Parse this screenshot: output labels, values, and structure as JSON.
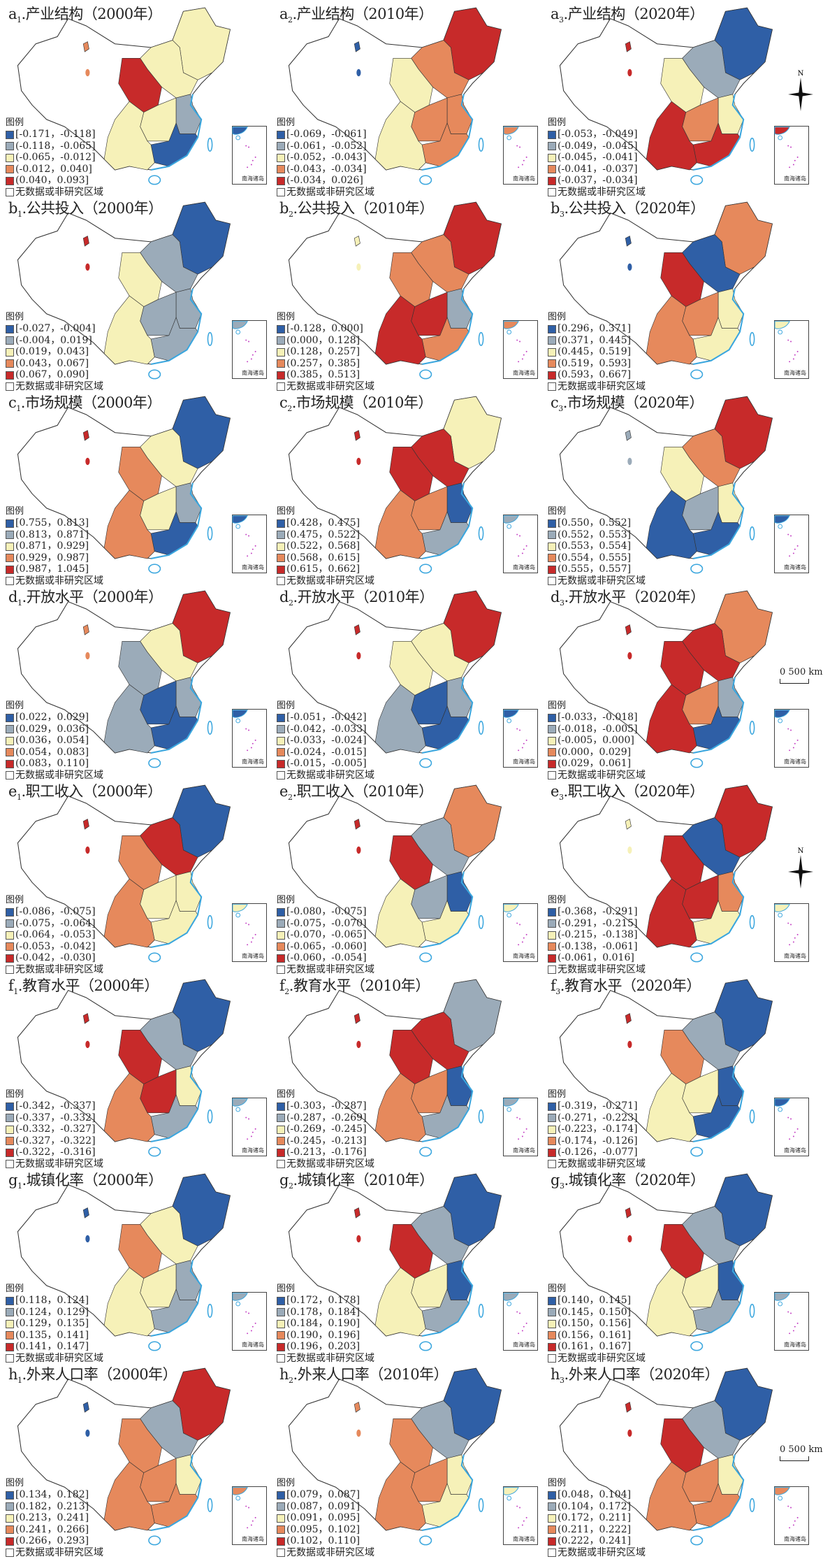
{
  "colors": [
    "#2f5fa6",
    "#9babb9",
    "#f6f1b8",
    "#e6895c",
    "#c72a2a"
  ],
  "legend_heading": "图例",
  "no_data_label": "无数据或非研究区域",
  "inset_label": "南海诸岛",
  "compass_label": "N",
  "scale_label": "0  500 km",
  "region_order": [
    "northeast",
    "north",
    "northwest",
    "central",
    "east",
    "southeast",
    "southwest",
    "xinjiang"
  ],
  "panels": [
    {
      "id": "a",
      "sub": "1",
      "name": "产业结构",
      "year": "（2000年）",
      "legend": [
        "[-0.171，-0.118]",
        "(-0.118，-0.065]",
        "(-0.065，-0.012]",
        "(-0.012，0.040]",
        "(0.040，0.093]"
      ],
      "classes": [
        2,
        2,
        4,
        2,
        1,
        0,
        2,
        3
      ]
    },
    {
      "id": "a",
      "sub": "2",
      "name": "产业结构",
      "year": "（2010年）",
      "legend": [
        "[-0.069，-0.061]",
        "(-0.061，-0.052]",
        "(-0.052，-0.043]",
        "(-0.043，-0.034]",
        "(-0.034，0.026]"
      ],
      "classes": [
        4,
        3,
        2,
        3,
        3,
        3,
        2,
        0
      ]
    },
    {
      "id": "a",
      "sub": "3",
      "name": "产业结构",
      "year": "（2020年）",
      "legend": [
        "[-0.053，-0.049]",
        "(-0.049，-0.045]",
        "(-0.045，-0.041]",
        "(-0.041，-0.037]",
        "(-0.037，-0.034]"
      ],
      "classes": [
        0,
        1,
        2,
        3,
        2,
        4,
        4,
        4
      ],
      "compass": true
    },
    {
      "id": "b",
      "sub": "1",
      "name": "公共投入",
      "year": "（2000年）",
      "legend": [
        "[-0.027，-0.004]",
        "(-0.004，0.019]",
        "(0.019，0.043]",
        "(0.043，0.067]",
        "(0.067，0.090]"
      ],
      "classes": [
        0,
        1,
        2,
        1,
        1,
        1,
        2,
        4
      ]
    },
    {
      "id": "b",
      "sub": "2",
      "name": "公共投入",
      "year": "（2010年）",
      "legend": [
        "[-0.128，0.000]",
        "(0.000，0.128]",
        "(0.128，0.257]",
        "(0.257，0.385]",
        "(0.385，0.513]"
      ],
      "classes": [
        4,
        3,
        3,
        4,
        1,
        3,
        4,
        2
      ]
    },
    {
      "id": "b",
      "sub": "3",
      "name": "公共投入",
      "year": "（2020年）",
      "legend": [
        "[0.296，0.371]",
        "(0.371，0.445]",
        "(0.445，0.519]",
        "(0.519，0.593]",
        "(0.593，0.667]"
      ],
      "classes": [
        3,
        0,
        4,
        3,
        2,
        2,
        3,
        0
      ]
    },
    {
      "id": "c",
      "sub": "1",
      "name": "市场规模",
      "year": "（2000年）",
      "legend": [
        "[0.755，0.813]",
        "(0.813，0.871]",
        "(0.871，0.929]",
        "(0.929，0.987]",
        "(0.987，1.045]"
      ],
      "classes": [
        0,
        2,
        3,
        2,
        1,
        0,
        3,
        4
      ]
    },
    {
      "id": "c",
      "sub": "2",
      "name": "市场规模",
      "year": "（2010年）",
      "legend": [
        "[0.428，0.475]",
        "(0.475，0.522]",
        "(0.522，0.568]",
        "(0.568，0.615]",
        "(0.615，0.662]"
      ],
      "classes": [
        2,
        4,
        4,
        3,
        0,
        1,
        3,
        4
      ]
    },
    {
      "id": "c",
      "sub": "3",
      "name": "市场规模",
      "year": "（2020年）",
      "legend": [
        "[0.550，0.552]",
        "(0.552，0.553]",
        "(0.553，0.554]",
        "(0.554，0.555]",
        "(0.555，0.557]"
      ],
      "classes": [
        4,
        3,
        2,
        1,
        2,
        0,
        0,
        1
      ]
    },
    {
      "id": "d",
      "sub": "1",
      "name": "开放水平",
      "year": "（2000年）",
      "legend": [
        "[0.022，0.029]",
        "(0.029，0.036]",
        "(0.036，0.054]",
        "(0.054，0.083]",
        "(0.083，0.110]"
      ],
      "classes": [
        4,
        2,
        1,
        0,
        1,
        0,
        1,
        3
      ]
    },
    {
      "id": "d",
      "sub": "2",
      "name": "开放水平",
      "year": "（2010年）",
      "legend": [
        "[-0.051，-0.042]",
        "(-0.042，-0.033]",
        "(-0.033，-0.024]",
        "(-0.024，-0.015]",
        "(-0.015，-0.005]"
      ],
      "classes": [
        4,
        2,
        2,
        0,
        1,
        0,
        1,
        4
      ]
    },
    {
      "id": "d",
      "sub": "3",
      "name": "开放水平",
      "year": "（2020年）",
      "legend": [
        "[-0.033，-0.018]",
        "(-0.018，-0.005]",
        "(-0.005，0.000]",
        "(0.000，0.029]",
        "(0.029，0.061]"
      ],
      "classes": [
        3,
        4,
        4,
        3,
        1,
        0,
        4,
        4
      ],
      "scale": true
    },
    {
      "id": "e",
      "sub": "1",
      "name": "职工收入",
      "year": "（2000年）",
      "legend": [
        "[-0.086，-0.075]",
        "(-0.075，-0.064]",
        "(-0.064，-0.053]",
        "(-0.053，-0.042]",
        "(-0.042，-0.030]"
      ],
      "classes": [
        0,
        4,
        3,
        2,
        2,
        2,
        3,
        4
      ]
    },
    {
      "id": "e",
      "sub": "2",
      "name": "职工收入",
      "year": "（2010年）",
      "legend": [
        "[-0.080，-0.075]",
        "(-0.075，-0.070]",
        "(-0.070，-0.065]",
        "(-0.065，-0.060]",
        "(-0.060，-0.054]"
      ],
      "classes": [
        3,
        1,
        4,
        1,
        0,
        2,
        2,
        4
      ]
    },
    {
      "id": "e",
      "sub": "3",
      "name": "职工收入",
      "year": "（2020年）",
      "legend": [
        "[-0.368，-0.291]",
        "(-0.291，-0.215]",
        "(-0.215，-0.138]",
        "(-0.138，-0.061]",
        "(-0.061，0.016]"
      ],
      "classes": [
        4,
        0,
        4,
        4,
        3,
        2,
        4,
        2
      ],
      "compass": true
    },
    {
      "id": "f",
      "sub": "1",
      "name": "教育水平",
      "year": "（2000年）",
      "legend": [
        "[-0.342，-0.337]",
        "(-0.337，-0.332]",
        "(-0.332，-0.327]",
        "(-0.327，-0.322]",
        "(-0.322，-0.316]"
      ],
      "classes": [
        0,
        1,
        4,
        4,
        2,
        1,
        3,
        4
      ]
    },
    {
      "id": "f",
      "sub": "2",
      "name": "教育水平",
      "year": "（2010年）",
      "legend": [
        "[-0.303，-0.287]",
        "(-0.287，-0.269]",
        "(-0.269，-0.245]",
        "(-0.245，-0.213]",
        "(-0.213，-0.176]"
      ],
      "classes": [
        1,
        4,
        4,
        3,
        0,
        1,
        3,
        4
      ]
    },
    {
      "id": "f",
      "sub": "3",
      "name": "教育水平",
      "year": "（2020年）",
      "legend": [
        "[-0.319，-0.271]",
        "(-0.271，-0.223]",
        "(-0.223，-0.174]",
        "(-0.174，-0.126]",
        "(-0.126，-0.077]"
      ],
      "classes": [
        0,
        1,
        3,
        2,
        0,
        0,
        2,
        4
      ]
    },
    {
      "id": "g",
      "sub": "1",
      "name": "城镇化率",
      "year": "（2000年）",
      "legend": [
        "[0.118，0.124]",
        "(0.124，0.129]",
        "(0.129，0.135]",
        "(0.135，0.141]",
        "(0.141，0.147]"
      ],
      "classes": [
        0,
        2,
        3,
        2,
        1,
        1,
        2,
        0
      ]
    },
    {
      "id": "g",
      "sub": "2",
      "name": "城镇化率",
      "year": "（2010年）",
      "legend": [
        "[0.172，0.178]",
        "(0.178，0.184]",
        "(0.184，0.190]",
        "(0.190，0.196]",
        "(0.196，0.203]"
      ],
      "classes": [
        0,
        1,
        4,
        2,
        0,
        1,
        2,
        4
      ]
    },
    {
      "id": "g",
      "sub": "3",
      "name": "城镇化率",
      "year": "（2020年）",
      "legend": [
        "[0.140，0.145]",
        "(0.145，0.150]",
        "(0.150，0.156]",
        "(0.156，0.161]",
        "(0.161，0.167]"
      ],
      "classes": [
        0,
        1,
        4,
        2,
        0,
        1,
        2,
        4
      ]
    },
    {
      "id": "h",
      "sub": "1",
      "name": "外来人口率",
      "year": "（2000年）",
      "legend": [
        "[0.134，0.182]",
        "(0.182，0.213]",
        "(0.213，0.241]",
        "(0.241，0.266]",
        "(0.266，0.293]"
      ],
      "classes": [
        4,
        1,
        3,
        3,
        2,
        3,
        3,
        0
      ]
    },
    {
      "id": "h",
      "sub": "2",
      "name": "外来人口率",
      "year": "（2010年）",
      "legend": [
        "[0.079，0.087]",
        "(0.087，0.091]",
        "(0.091，0.095]",
        "(0.095，0.102]",
        "(0.102，0.110]"
      ],
      "classes": [
        0,
        1,
        3,
        3,
        2,
        2,
        3,
        3
      ]
    },
    {
      "id": "h",
      "sub": "3",
      "name": "外来人口率",
      "year": "（2020年）",
      "legend": [
        "[0.048，0.104]",
        "(0.104，0.172]",
        "(0.172，0.211]",
        "(0.211，0.222]",
        "(0.222，0.241]"
      ],
      "classes": [
        0,
        1,
        4,
        3,
        2,
        3,
        3,
        4
      ],
      "scale": true
    }
  ]
}
